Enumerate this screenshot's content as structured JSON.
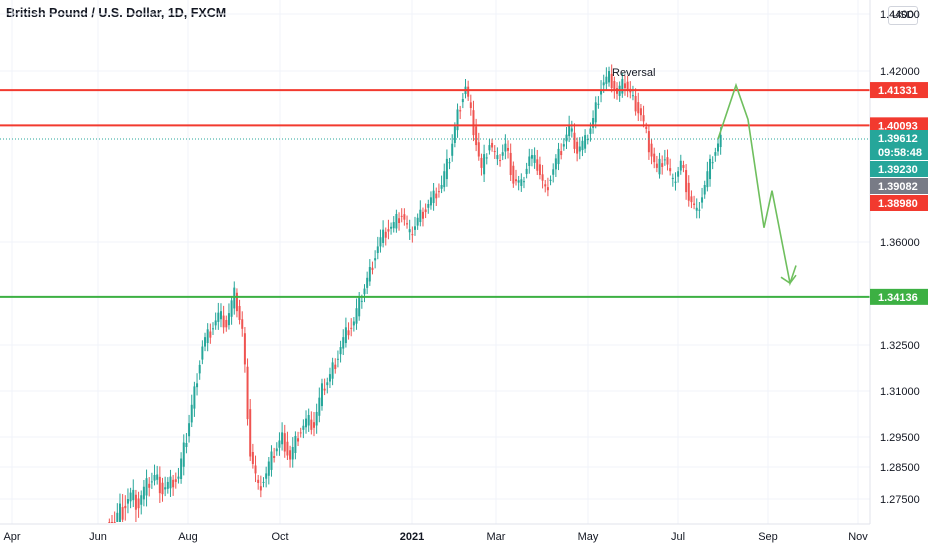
{
  "header": {
    "title": "British Pound / U.S. Dollar, 1D, FXCM"
  },
  "currency_button": "USD",
  "colors": {
    "up": "#26a69a",
    "down": "#ef5350",
    "resistance": "#f23a2f",
    "support": "#3cb043",
    "projection": "#6fbf5e",
    "current": "#26a69a",
    "grid": "#f0f3fa"
  },
  "chart_data": {
    "type": "candlestick",
    "title": "British Pound / U.S. Dollar, 1D, FXCM",
    "y_ticks": [
      "1.42000",
      "1.36000",
      "1.32500",
      "1.31000",
      "1.29500",
      "1.28500",
      "1.27500"
    ],
    "top_tick": "1.44000",
    "x_ticks": [
      "Apr",
      "Jun",
      "Aug",
      "Oct",
      "2021",
      "Mar",
      "May",
      "Jul",
      "Sep",
      "Nov"
    ],
    "horizontal_levels": [
      {
        "value": 1.41331,
        "label": "1.41331",
        "kind": "resistance"
      },
      {
        "value": 1.40093,
        "label": "1.40093",
        "kind": "resistance"
      },
      {
        "value": 1.34136,
        "label": "1.34136",
        "kind": "support"
      }
    ],
    "price_tags": [
      {
        "value": 1.39612,
        "label": "1.39612",
        "sub": "09:58:48",
        "color": "#26a69a"
      },
      {
        "value": 1.3923,
        "label": "1.39230",
        "color": "#26a69a"
      },
      {
        "value": 1.39082,
        "label": "1.39082",
        "color": "#787b86"
      },
      {
        "value": 1.3898,
        "label": "1.38980",
        "color": "#f23a2f"
      }
    ],
    "current_price": 1.39612,
    "annotation": "Reversal",
    "series_approx_closes": [
      1.27,
      1.273,
      1.276,
      1.274,
      1.279,
      1.282,
      1.278,
      1.28,
      1.282,
      1.295,
      1.31,
      1.325,
      1.33,
      1.335,
      1.332,
      1.342,
      1.33,
      1.29,
      1.278,
      1.283,
      1.29,
      1.295,
      1.288,
      1.296,
      1.3,
      1.299,
      1.31,
      1.315,
      1.322,
      1.329,
      1.333,
      1.342,
      1.35,
      1.359,
      1.364,
      1.366,
      1.37,
      1.362,
      1.368,
      1.372,
      1.376,
      1.38,
      1.39,
      1.405,
      1.415,
      1.4,
      1.385,
      1.395,
      1.388,
      1.394,
      1.382,
      1.38,
      1.39,
      1.387,
      1.378,
      1.386,
      1.393,
      1.4,
      1.392,
      1.395,
      1.403,
      1.415,
      1.418,
      1.412,
      1.416,
      1.41,
      1.405,
      1.394,
      1.385,
      1.39,
      1.38,
      1.388,
      1.376,
      1.37,
      1.38,
      1.39,
      1.3961
    ],
    "projection_path": [
      1.3961,
      1.415,
      1.403,
      1.365,
      1.378,
      1.346,
      1.352
    ],
    "ylim": [
      1.27,
      1.442
    ]
  }
}
